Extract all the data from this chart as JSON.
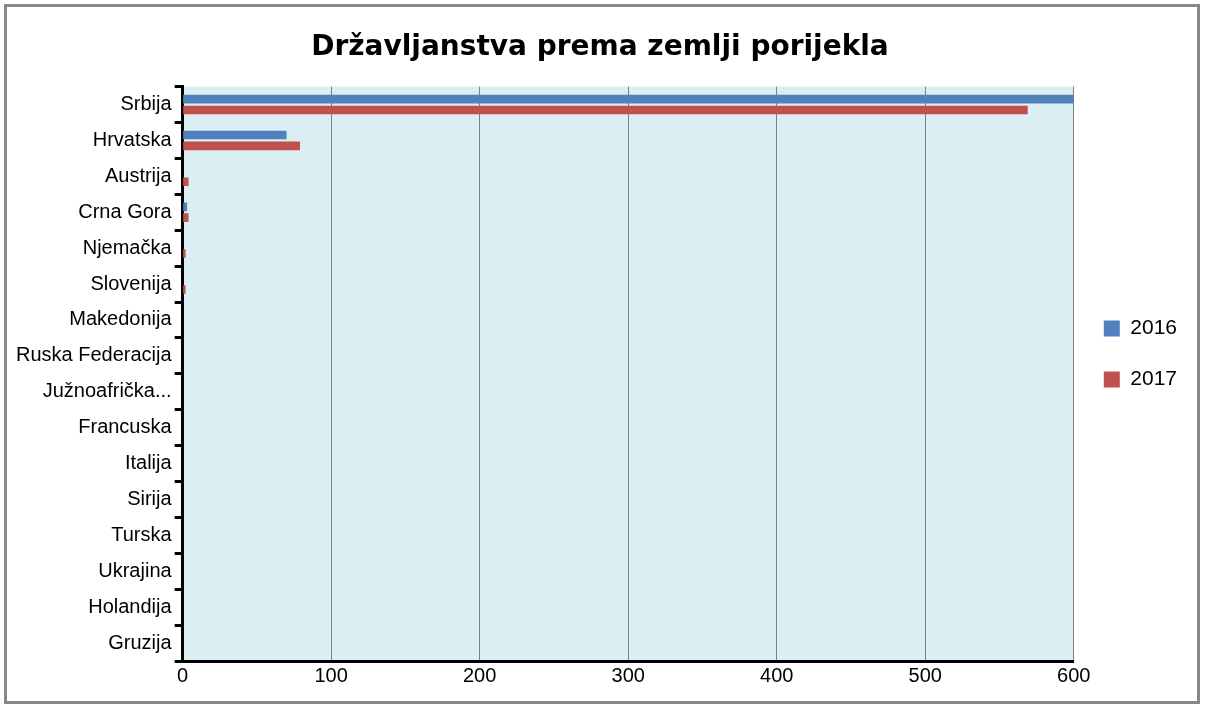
{
  "chart_data": {
    "type": "bar",
    "orientation": "horizontal",
    "title": "Državljanstva prema zemlji porijekla",
    "categories": [
      "Srbija",
      "Hrvatska",
      "Austrija",
      "Crna Gora",
      "Njemačka",
      "Slovenija",
      "Makedonija",
      "Ruska Federacija",
      "Južnoafrička...",
      "Francuska",
      "Italija",
      "Sirija",
      "Turska",
      "Ukrajina",
      "Holandija",
      "Gruzija"
    ],
    "series": [
      {
        "name": "2016",
        "color": "#4f81bd",
        "values": [
          600,
          70,
          0,
          3,
          0,
          0,
          0,
          0,
          0,
          0,
          0,
          0,
          0,
          0,
          0,
          0
        ]
      },
      {
        "name": "2017",
        "color": "#c0504d",
        "values": [
          569,
          79,
          4,
          4,
          2,
          2,
          0,
          0,
          0,
          0,
          0,
          0,
          0,
          0,
          0,
          0
        ]
      }
    ],
    "xlim": [
      0,
      600
    ],
    "xticks": [
      0,
      100,
      200,
      300,
      400,
      500,
      600
    ],
    "grid": "x",
    "legend": "right"
  }
}
